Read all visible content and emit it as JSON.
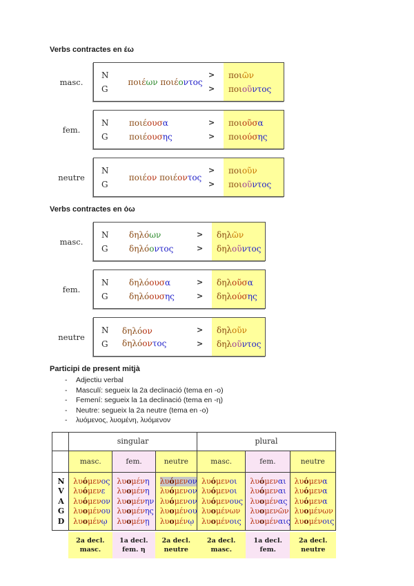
{
  "colors": {
    "k": "#8a4a14",
    "r": "#b5300f",
    "g": "#2e8b2e",
    "b": "#2020c8",
    "o": "#c77400",
    "p": "#9a3b9a",
    "d": "#6b1d06"
  },
  "headings": {
    "eo": "Verbs contractes en έω",
    "oo": "Verbs contractes en όω",
    "participle": "Participi de present mitjà"
  },
  "labels": {
    "n": "N",
    "g": "G",
    "arrow": ">"
  },
  "boxes": [
    {
      "label": "masc.",
      "mode": "span",
      "src": [
        [
          {
            "t": "ποιέ",
            "c": "k"
          },
          {
            "t": "ων",
            "c": "g"
          },
          {
            "t": " "
          },
          {
            "t": "ποιέ",
            "c": "k"
          },
          {
            "t": "ο",
            "c": "g"
          },
          {
            "t": "ντος",
            "c": "b"
          }
        ]
      ],
      "res": [
        [
          {
            "t": "ποι",
            "c": "k"
          },
          {
            "t": "ῶν",
            "c": "o"
          }
        ],
        [
          {
            "t": "ποι",
            "c": "k"
          },
          {
            "t": "οῦ",
            "c": "p"
          },
          {
            "t": "ντος",
            "c": "b"
          }
        ]
      ]
    },
    {
      "label": "fem.",
      "mode": "lines",
      "src": [
        [
          {
            "t": "ποιέ",
            "c": "k"
          },
          {
            "t": "ουσ",
            "c": "r"
          },
          {
            "t": "α",
            "c": "b"
          }
        ],
        [
          {
            "t": "ποιέ",
            "c": "k"
          },
          {
            "t": "ουσ",
            "c": "r"
          },
          {
            "t": "ης",
            "c": "b"
          }
        ]
      ],
      "res": [
        [
          {
            "t": "ποι",
            "c": "k"
          },
          {
            "t": "οῦσ",
            "c": "r"
          },
          {
            "t": "α",
            "c": "b"
          }
        ],
        [
          {
            "t": "ποι",
            "c": "k"
          },
          {
            "t": "ούσ",
            "c": "r"
          },
          {
            "t": "ης",
            "c": "b"
          }
        ]
      ]
    },
    {
      "label": "neutre",
      "mode": "span",
      "src": [
        [
          {
            "t": "ποιέ",
            "c": "k"
          },
          {
            "t": "ον",
            "c": "r"
          },
          {
            "t": " "
          },
          {
            "t": "ποιέ",
            "c": "k"
          },
          {
            "t": "ον",
            "c": "r"
          },
          {
            "t": "τος",
            "c": "b"
          }
        ]
      ],
      "res": [
        [
          {
            "t": "ποι",
            "c": "k"
          },
          {
            "t": "οῦν",
            "c": "o"
          }
        ],
        [
          {
            "t": "ποι",
            "c": "k"
          },
          {
            "t": "οῦ",
            "c": "p"
          },
          {
            "t": "ντος",
            "c": "b"
          }
        ]
      ]
    },
    {
      "label": "masc.",
      "mode": "lines",
      "src": [
        [
          {
            "t": "δηλό",
            "c": "k"
          },
          {
            "t": "ων",
            "c": "g"
          }
        ],
        [
          {
            "t": "δηλό",
            "c": "k"
          },
          {
            "t": "ο",
            "c": "g"
          },
          {
            "t": "ντος",
            "c": "b"
          }
        ]
      ],
      "res": [
        [
          {
            "t": "δηλ",
            "c": "k"
          },
          {
            "t": "ῶν",
            "c": "o"
          }
        ],
        [
          {
            "t": "δηλ",
            "c": "k"
          },
          {
            "t": "οῦ",
            "c": "p"
          },
          {
            "t": "ντος",
            "c": "b"
          }
        ]
      ]
    },
    {
      "label": "fem.",
      "mode": "lines",
      "src": [
        [
          {
            "t": "δηλό",
            "c": "k"
          },
          {
            "t": "ουσ",
            "c": "r"
          },
          {
            "t": "α",
            "c": "b"
          }
        ],
        [
          {
            "t": "δηλό",
            "c": "k"
          },
          {
            "t": "ουσ",
            "c": "r"
          },
          {
            "t": "ης",
            "c": "b"
          }
        ]
      ],
      "res": [
        [
          {
            "t": "δηλ",
            "c": "k"
          },
          {
            "t": "οῦσ",
            "c": "r"
          },
          {
            "t": "α",
            "c": "b"
          }
        ],
        [
          {
            "t": "δηλ",
            "c": "k"
          },
          {
            "t": "ούσ",
            "c": "r"
          },
          {
            "t": "ης",
            "c": "b"
          }
        ]
      ]
    },
    {
      "label": "neutre",
      "mode": "span",
      "src": [
        [
          {
            "t": "δηλό",
            "c": "k"
          },
          {
            "t": "ον",
            "c": "r"
          },
          {
            "t": " "
          },
          {
            "t": "δηλό",
            "c": "k"
          },
          {
            "t": "ον",
            "c": "r"
          },
          {
            "t": "τος",
            "c": "b"
          }
        ]
      ],
      "res": [
        [
          {
            "t": "δηλ",
            "c": "k"
          },
          {
            "t": "οῦν",
            "c": "o"
          }
        ],
        [
          {
            "t": "δηλ",
            "c": "k"
          },
          {
            "t": "οῦ",
            "c": "p"
          },
          {
            "t": "ντος",
            "c": "b"
          }
        ]
      ]
    }
  ],
  "bullets": [
    "Adjectiu verbal",
    "Masculí: segueix la 2a declinació (tema en -o)",
    "Femení: segueix la 1a declinació (tema en -η)",
    "Neutre: segueix la 2a neutre (tema en -o)",
    "λυόμενος, λυομένη, λυόμενον"
  ],
  "table": {
    "number_headers": [
      "singular",
      "plural"
    ],
    "gender_headers": [
      "masc.",
      "fem.",
      "neutre",
      "masc.",
      "fem.",
      "neutre"
    ],
    "row_labels": [
      "N",
      "V",
      "A",
      "G",
      "D"
    ],
    "cols": [
      {
        "words": [
          [
            {
              "t": "λυ",
              "c": "r"
            },
            {
              "t": "ό",
              "c": "d"
            },
            {
              "t": "μεν",
              "c": "r"
            },
            {
              "t": "ος",
              "c": "b"
            }
          ],
          [
            {
              "t": "λυ",
              "c": "r"
            },
            {
              "t": "ό",
              "c": "d"
            },
            {
              "t": "μεν",
              "c": "r"
            },
            {
              "t": "ε",
              "c": "b"
            }
          ],
          [
            {
              "t": "λυ",
              "c": "r"
            },
            {
              "t": "ό",
              "c": "d"
            },
            {
              "t": "μεν",
              "c": "r"
            },
            {
              "t": "ον",
              "c": "b"
            }
          ],
          [
            {
              "t": "λυ",
              "c": "r"
            },
            {
              "t": "ο",
              "c": "d"
            },
            {
              "t": "μέν",
              "c": "r"
            },
            {
              "t": "ου",
              "c": "b"
            }
          ],
          [
            {
              "t": "λυ",
              "c": "r"
            },
            {
              "t": "ο",
              "c": "d"
            },
            {
              "t": "μέν",
              "c": "r"
            },
            {
              "t": "ῳ",
              "c": "b"
            }
          ]
        ]
      },
      {
        "words": [
          [
            {
              "t": "λυ",
              "c": "r"
            },
            {
              "t": "ο",
              "c": "d"
            },
            {
              "t": "μέν",
              "c": "r"
            },
            {
              "t": "η",
              "c": "b"
            }
          ],
          [
            {
              "t": "λυ",
              "c": "r"
            },
            {
              "t": "ο",
              "c": "d"
            },
            {
              "t": "μέν",
              "c": "r"
            },
            {
              "t": "η",
              "c": "b"
            }
          ],
          [
            {
              "t": "λυ",
              "c": "r"
            },
            {
              "t": "ο",
              "c": "d"
            },
            {
              "t": "μέν",
              "c": "r"
            },
            {
              "t": "ην",
              "c": "b"
            }
          ],
          [
            {
              "t": "λυ",
              "c": "r"
            },
            {
              "t": "ο",
              "c": "d"
            },
            {
              "t": "μέν",
              "c": "r"
            },
            {
              "t": "ης",
              "c": "b"
            }
          ],
          [
            {
              "t": "λυ",
              "c": "r"
            },
            {
              "t": "ο",
              "c": "d"
            },
            {
              "t": "μέν",
              "c": "r"
            },
            {
              "t": "ῃ",
              "c": "b"
            }
          ]
        ]
      },
      {
        "words": [
          [
            {
              "t": "λυ",
              "c": "r"
            },
            {
              "t": "ό",
              "c": "d"
            },
            {
              "t": "μεν",
              "c": "r"
            },
            {
              "t": "ον",
              "c": "b"
            }
          ],
          [
            {
              "t": "λυ",
              "c": "r"
            },
            {
              "t": "ό",
              "c": "d"
            },
            {
              "t": "μεν",
              "c": "r"
            },
            {
              "t": "ον",
              "c": "b"
            }
          ],
          [
            {
              "t": "λυ",
              "c": "r"
            },
            {
              "t": "ό",
              "c": "d"
            },
            {
              "t": "μεν",
              "c": "r"
            },
            {
              "t": "ον",
              "c": "b"
            }
          ],
          [
            {
              "t": "λυ",
              "c": "r"
            },
            {
              "t": "ο",
              "c": "d"
            },
            {
              "t": "μέν",
              "c": "r"
            },
            {
              "t": "ου",
              "c": "b"
            }
          ],
          [
            {
              "t": "λυ",
              "c": "r"
            },
            {
              "t": "ο",
              "c": "d"
            },
            {
              "t": "μέν",
              "c": "r"
            },
            {
              "t": "ῳ",
              "c": "b"
            }
          ]
        ]
      },
      {
        "words": [
          [
            {
              "t": "λυ",
              "c": "r"
            },
            {
              "t": "ό",
              "c": "d"
            },
            {
              "t": "μεν",
              "c": "r"
            },
            {
              "t": "οι",
              "c": "b"
            }
          ],
          [
            {
              "t": "λυ",
              "c": "r"
            },
            {
              "t": "ό",
              "c": "d"
            },
            {
              "t": "μεν",
              "c": "r"
            },
            {
              "t": "οι",
              "c": "b"
            }
          ],
          [
            {
              "t": "λυ",
              "c": "r"
            },
            {
              "t": "ό",
              "c": "d"
            },
            {
              "t": "μεν",
              "c": "r"
            },
            {
              "t": "ους",
              "c": "b"
            }
          ],
          [
            {
              "t": "λυ",
              "c": "r"
            },
            {
              "t": "ο",
              "c": "d"
            },
            {
              "t": "μέν",
              "c": "r"
            },
            {
              "t": "ων",
              "c": "r"
            }
          ],
          [
            {
              "t": "λυ",
              "c": "r"
            },
            {
              "t": "ο",
              "c": "d"
            },
            {
              "t": "μέν",
              "c": "r"
            },
            {
              "t": "οις",
              "c": "b"
            }
          ]
        ]
      },
      {
        "words": [
          [
            {
              "t": "λυ",
              "c": "r"
            },
            {
              "t": "ό",
              "c": "d"
            },
            {
              "t": "μεν",
              "c": "r"
            },
            {
              "t": "αι",
              "c": "b"
            }
          ],
          [
            {
              "t": "λυ",
              "c": "r"
            },
            {
              "t": "ό",
              "c": "d"
            },
            {
              "t": "μεν",
              "c": "r"
            },
            {
              "t": "αι",
              "c": "b"
            }
          ],
          [
            {
              "t": "λυ",
              "c": "r"
            },
            {
              "t": "ο",
              "c": "d"
            },
            {
              "t": "μέν",
              "c": "r"
            },
            {
              "t": "ας",
              "c": "b"
            }
          ],
          [
            {
              "t": "λυ",
              "c": "r"
            },
            {
              "t": "ο",
              "c": "d"
            },
            {
              "t": "μεν",
              "c": "r"
            },
            {
              "t": "ῶν",
              "c": "r"
            }
          ],
          [
            {
              "t": "λυ",
              "c": "r"
            },
            {
              "t": "ο",
              "c": "d"
            },
            {
              "t": "μέν",
              "c": "r"
            },
            {
              "t": "αις",
              "c": "b"
            }
          ]
        ]
      },
      {
        "words": [
          [
            {
              "t": "λυ",
              "c": "r"
            },
            {
              "t": "ό",
              "c": "d"
            },
            {
              "t": "μεν",
              "c": "r"
            },
            {
              "t": "α",
              "c": "b"
            }
          ],
          [
            {
              "t": "λυ",
              "c": "r"
            },
            {
              "t": "ό",
              "c": "d"
            },
            {
              "t": "μεν",
              "c": "r"
            },
            {
              "t": "α",
              "c": "b"
            }
          ],
          [
            {
              "t": "λυ",
              "c": "r"
            },
            {
              "t": "ό",
              "c": "d"
            },
            {
              "t": "μεν",
              "c": "r"
            },
            {
              "t": "α",
              "c": "b"
            }
          ],
          [
            {
              "t": "λυ",
              "c": "r"
            },
            {
              "t": "ο",
              "c": "d"
            },
            {
              "t": "μέν",
              "c": "r"
            },
            {
              "t": "ων",
              "c": "r"
            }
          ],
          [
            {
              "t": "λυ",
              "c": "r"
            },
            {
              "t": "ο",
              "c": "d"
            },
            {
              "t": "μέν",
              "c": "r"
            },
            {
              "t": "οις",
              "c": "b"
            }
          ]
        ]
      }
    ],
    "footer": [
      [
        "2a decl.",
        "masc."
      ],
      [
        "1a decl.",
        "fem. η"
      ],
      [
        "2a decl.",
        "neutre"
      ],
      [
        "2a decl. masc."
      ],
      [
        "1a decl.",
        "fem."
      ],
      [
        "2a decl.",
        "neutre"
      ]
    ]
  }
}
